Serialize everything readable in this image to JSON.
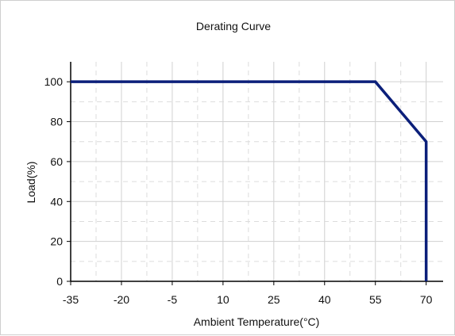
{
  "chart_data": {
    "type": "line",
    "title": "Derating Curve",
    "xlabel": "Ambient Temperature(°C)",
    "ylabel": "Load(%)",
    "x_ticks": [
      -35,
      -20,
      -5,
      10,
      25,
      40,
      55,
      70
    ],
    "y_ticks": [
      0,
      20,
      40,
      60,
      80,
      100
    ],
    "xlim": [
      -35,
      75
    ],
    "ylim": [
      0,
      110
    ],
    "grid": true,
    "line_color": "#0b1f7a",
    "series": [
      {
        "x": [
          -35,
          55,
          70,
          70
        ],
        "y": [
          100,
          100,
          70,
          0
        ]
      }
    ]
  }
}
